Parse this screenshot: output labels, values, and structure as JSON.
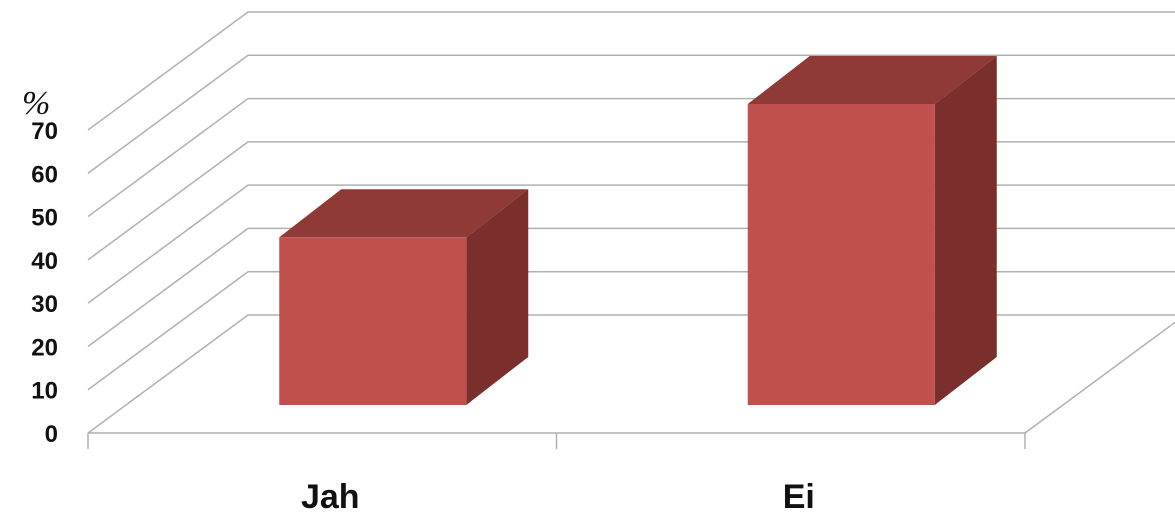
{
  "chart_data": {
    "type": "bar",
    "three_d": true,
    "categories": [
      "Jah",
      "Ei"
    ],
    "values": [
      39,
      70
    ],
    "ylabel": "%",
    "ylim": [
      0,
      70
    ],
    "yticks": [
      0,
      10,
      20,
      30,
      40,
      50,
      60,
      70
    ],
    "grid": true,
    "legend": "none",
    "colors": {
      "front": "#c0504d",
      "side": "#7b2f2d",
      "top": "#8f3a37",
      "grid": "#b0b0b0"
    }
  }
}
